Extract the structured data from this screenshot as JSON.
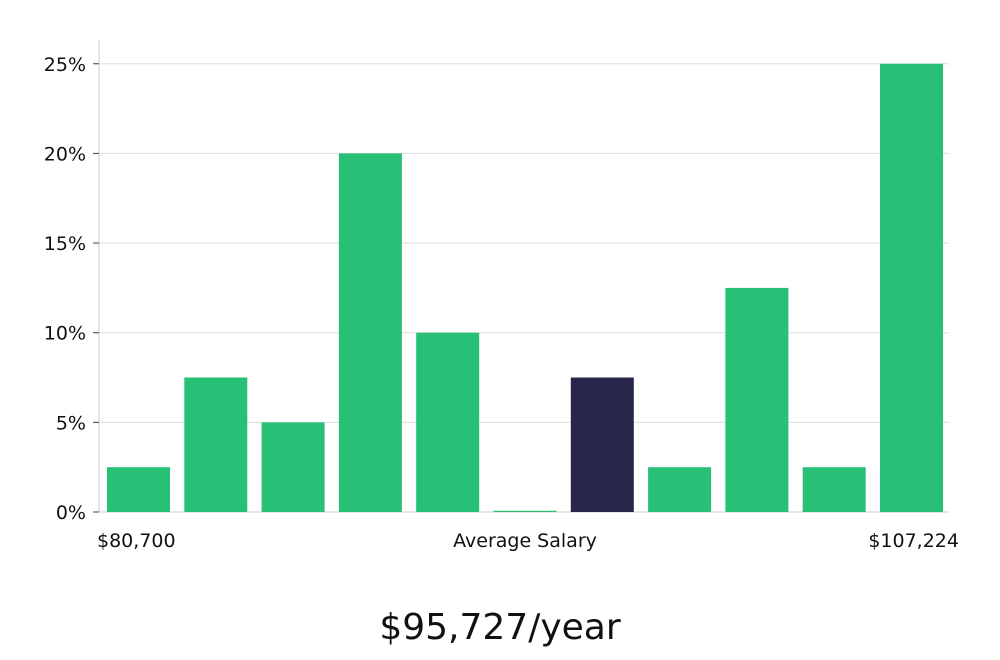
{
  "chart_data": {
    "type": "bar",
    "y_unit": "%",
    "ylim": [
      0,
      26
    ],
    "yticks": [
      0,
      5,
      10,
      15,
      20,
      25
    ],
    "ytick_labels": [
      "0%",
      "5%",
      "10%",
      "15%",
      "20%",
      "25%"
    ],
    "grid": true,
    "x_axis_labels": {
      "left": "$80,700",
      "center": "Average Salary",
      "right": "$107,224"
    },
    "values": [
      2.5,
      7.5,
      5,
      20,
      10,
      0,
      7.5,
      2.5,
      12.5,
      2.5,
      25
    ],
    "highlight_index": 6,
    "colors": {
      "bar": "#28bf77",
      "highlight": "#28254a",
      "grid": "#dddddd",
      "axis": "#cccccc"
    }
  },
  "headline": "$95,727/year"
}
